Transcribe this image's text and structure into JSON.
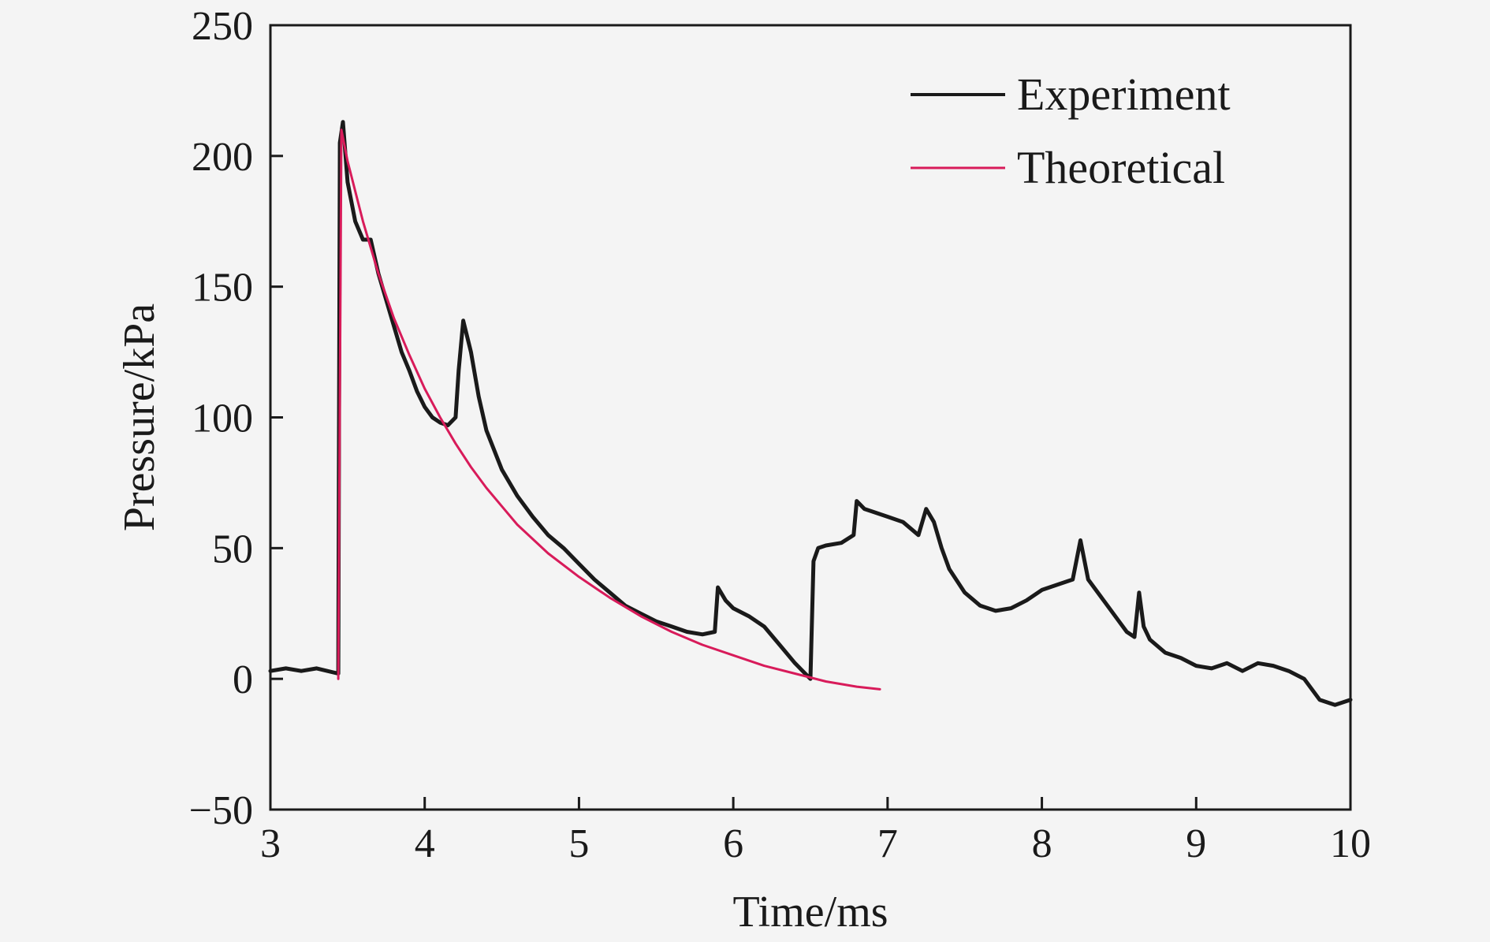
{
  "chart_data": {
    "type": "line",
    "xlabel": "Time/ms",
    "ylabel": "Pressure/kPa",
    "xlim": [
      3,
      10
    ],
    "ylim": [
      -50,
      250
    ],
    "xticks": [
      3,
      4,
      5,
      6,
      7,
      8,
      9,
      10
    ],
    "yticks": [
      -50,
      0,
      50,
      100,
      150,
      200,
      250
    ],
    "xtick_labels": [
      "3",
      "4",
      "5",
      "6",
      "7",
      "8",
      "9",
      "10"
    ],
    "ytick_labels": [
      "−50",
      "0",
      "50",
      "100",
      "150",
      "200",
      "250"
    ],
    "grid": false,
    "legend_position": "top-right",
    "series": [
      {
        "name": "Experiment",
        "color": "#1a1a1a",
        "x": [
          3.0,
          3.1,
          3.2,
          3.3,
          3.44,
          3.45,
          3.47,
          3.5,
          3.55,
          3.6,
          3.65,
          3.7,
          3.75,
          3.8,
          3.85,
          3.9,
          3.95,
          4.0,
          4.05,
          4.1,
          4.15,
          4.2,
          4.22,
          4.25,
          4.3,
          4.35,
          4.4,
          4.5,
          4.6,
          4.7,
          4.8,
          4.9,
          5.0,
          5.1,
          5.2,
          5.3,
          5.4,
          5.5,
          5.6,
          5.7,
          5.8,
          5.88,
          5.9,
          5.95,
          6.0,
          6.1,
          6.2,
          6.3,
          6.4,
          6.5,
          6.52,
          6.55,
          6.6,
          6.7,
          6.78,
          6.8,
          6.85,
          6.9,
          7.0,
          7.1,
          7.2,
          7.25,
          7.3,
          7.35,
          7.4,
          7.5,
          7.6,
          7.7,
          7.8,
          7.9,
          8.0,
          8.1,
          8.2,
          8.25,
          8.3,
          8.4,
          8.5,
          8.55,
          8.6,
          8.63,
          8.66,
          8.7,
          8.8,
          8.9,
          9.0,
          9.1,
          9.2,
          9.3,
          9.4,
          9.5,
          9.6,
          9.7,
          9.8,
          9.9,
          10.0
        ],
        "y": [
          3,
          4,
          3,
          4,
          2,
          205,
          213,
          190,
          175,
          168,
          168,
          155,
          145,
          135,
          125,
          118,
          110,
          104,
          100,
          98,
          97,
          100,
          118,
          137,
          125,
          108,
          95,
          80,
          70,
          62,
          55,
          50,
          44,
          38,
          33,
          28,
          25,
          22,
          20,
          18,
          17,
          18,
          35,
          30,
          27,
          24,
          20,
          13,
          6,
          0,
          45,
          50,
          51,
          52,
          55,
          68,
          65,
          64,
          62,
          60,
          55,
          65,
          60,
          50,
          42,
          33,
          28,
          26,
          27,
          30,
          34,
          36,
          38,
          53,
          38,
          30,
          22,
          18,
          16,
          33,
          20,
          15,
          10,
          8,
          5,
          4,
          6,
          3,
          6,
          5,
          3,
          0,
          -8,
          -10,
          -8
        ]
      },
      {
        "name": "Theoretical",
        "color": "#d81b5a",
        "x": [
          3.44,
          3.46,
          3.5,
          3.6,
          3.7,
          3.8,
          3.9,
          4.0,
          4.1,
          4.2,
          4.3,
          4.4,
          4.5,
          4.6,
          4.8,
          5.0,
          5.2,
          5.4,
          5.6,
          5.8,
          6.0,
          6.2,
          6.4,
          6.6,
          6.8,
          6.95
        ],
        "y": [
          0,
          210,
          198,
          175,
          155,
          138,
          124,
          111,
          100,
          90,
          81,
          73,
          66,
          59,
          48,
          39,
          31,
          24,
          18,
          13,
          9,
          5,
          2,
          -1,
          -3,
          -4
        ]
      }
    ]
  }
}
